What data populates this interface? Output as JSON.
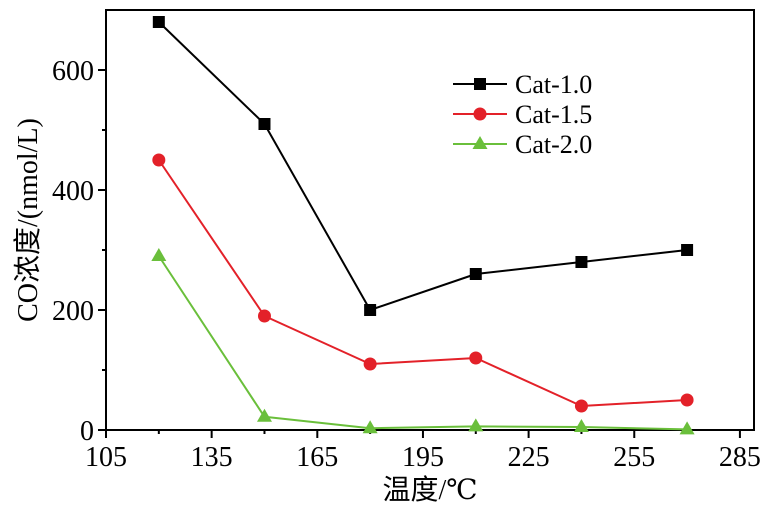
{
  "chart_data": {
    "type": "line",
    "x": [
      120,
      150,
      180,
      210,
      240,
      270
    ],
    "series": [
      {
        "name": "Cat-1.0",
        "values": [
          680,
          510,
          200,
          260,
          280,
          300
        ],
        "color": "#000000",
        "marker": "square"
      },
      {
        "name": "Cat-1.5",
        "values": [
          450,
          190,
          110,
          120,
          40,
          50
        ],
        "color": "#e32129",
        "marker": "circle"
      },
      {
        "name": "Cat-2.0",
        "values": [
          290,
          22,
          3,
          6,
          5,
          1
        ],
        "color": "#6abf3b",
        "marker": "triangle"
      }
    ],
    "xlabel": "温度/℃",
    "ylabel": "CO浓度/(nmol/L)",
    "xlim": [
      105,
      289
    ],
    "ylim": [
      0,
      700
    ],
    "xticks": [
      105,
      135,
      165,
      195,
      225,
      255,
      285
    ],
    "yticks": [
      0,
      200,
      400,
      600
    ],
    "grid": false,
    "legend": "top-right"
  }
}
